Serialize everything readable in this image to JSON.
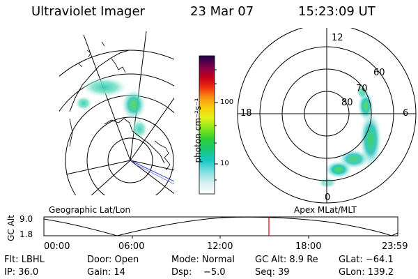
{
  "header": {
    "title": "Ultraviolet Imager",
    "date": "23 Mar 07",
    "time": "15:23:09 UT"
  },
  "colorbar": {
    "unit_label": "photon cm⁻²s⁻¹",
    "ticks": [
      "100",
      "10"
    ]
  },
  "polar": {
    "lat_labels": [
      "60",
      "70",
      "80"
    ],
    "mlt_labels": {
      "top": "12",
      "left": "18",
      "right": "6",
      "bottom": "0"
    }
  },
  "panel_labels": {
    "left": "Geographic Lat/Lon",
    "right": "Apex MLat/MLT"
  },
  "timeline": {
    "y_axis_label": "GC Alt",
    "y_ticks": [
      "9.0",
      "1.8"
    ],
    "x_ticks": [
      "00:00",
      "06:00",
      "12:00",
      "18:00",
      "23:59"
    ],
    "current_time_marker": "15:23"
  },
  "status": {
    "row1": {
      "filter": "Flt: LBHL",
      "door": "Door: Open",
      "mode": "Mode: Normal",
      "gc_alt": "GC Alt: 8.9 Re",
      "glat": "GLat: −64.1"
    },
    "row2": {
      "ip": "IP: 36.0",
      "gain": "Gain: 14",
      "dsp": "Dsp:    −5.0",
      "seq": "Seq: 39",
      "glon": "GLon: 139.2"
    }
  },
  "colors": {
    "background": "#ffffff",
    "foreground": "#000000",
    "time_marker": "#e00000",
    "coastline_highlight": "#3344cc"
  }
}
